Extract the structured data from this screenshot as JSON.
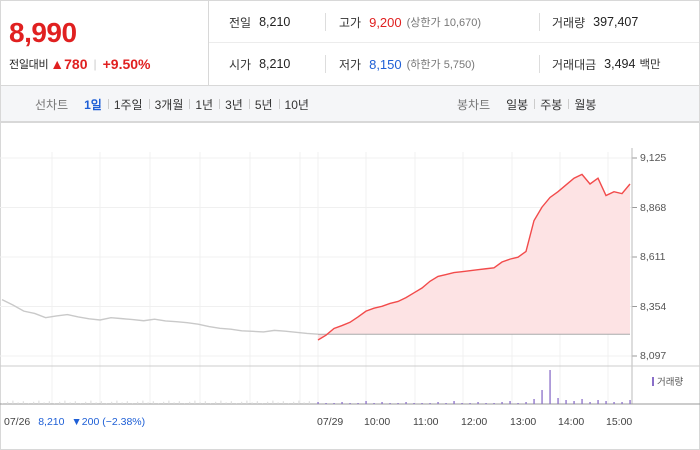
{
  "summary": {
    "price": "8,990",
    "diff_label": "전일대비",
    "diff_arrow": "▲",
    "diff_value": "780",
    "diff_pct": "+9.50%",
    "prev_close": {
      "label": "전일",
      "value": "8,210"
    },
    "high": {
      "label": "고가",
      "value": "9,200",
      "note": "(상한가 10,670)"
    },
    "volume": {
      "label": "거래량",
      "value": "397,407"
    },
    "open": {
      "label": "시가",
      "value": "8,210"
    },
    "low": {
      "label": "저가",
      "value": "8,150",
      "note": "(하한가 5,750)"
    },
    "amount": {
      "label": "거래대금",
      "value": "3,494",
      "unit": "백만"
    }
  },
  "tabs": {
    "line_title": "선차트",
    "line_items": [
      "1일",
      "1주일",
      "3개월",
      "1년",
      "3년",
      "5년",
      "10년"
    ],
    "line_active": "1일",
    "candle_title": "봉차트",
    "candle_items": [
      "일봉",
      "주봉",
      "월봉"
    ]
  },
  "chart_data": {
    "type": "line",
    "ylim": [
      8097,
      9125
    ],
    "yticks": [
      "9,125",
      "8,868",
      "8,611",
      "8,354",
      "8,097"
    ],
    "xticks": [
      "07/29",
      "10:00",
      "11:00",
      "12:00",
      "13:00",
      "14:00",
      "15:00"
    ],
    "prev_day": {
      "date": "07/26",
      "close": "8,210",
      "change": "▼200 (−2.38%)"
    },
    "prev_day_series": [
      8390,
      8362,
      8330,
      8318,
      8296,
      8305,
      8312,
      8300,
      8290,
      8284,
      8296,
      8291,
      8286,
      8280,
      8288,
      8279,
      8275,
      8270,
      8262,
      8250,
      8241,
      8236,
      8228,
      8225,
      8222,
      8230,
      8226,
      8220,
      8214,
      8210
    ],
    "today_series": {
      "x": [
        "09:00",
        "09:10",
        "09:20",
        "09:30",
        "09:40",
        "09:50",
        "10:00",
        "10:10",
        "10:20",
        "10:30",
        "10:40",
        "10:50",
        "11:00",
        "11:10",
        "11:20",
        "11:30",
        "11:40",
        "11:50",
        "12:00",
        "12:10",
        "12:20",
        "12:30",
        "12:40",
        "12:50",
        "13:00",
        "13:10",
        "13:20",
        "13:30",
        "13:40",
        "13:50",
        "14:00",
        "14:10",
        "14:20",
        "14:30",
        "14:40",
        "14:50",
        "15:00",
        "15:10",
        "15:20",
        "15:30"
      ],
      "y": [
        8180,
        8205,
        8240,
        8255,
        8272,
        8300,
        8330,
        8345,
        8355,
        8370,
        8380,
        8400,
        8425,
        8450,
        8485,
        8510,
        8520,
        8530,
        8535,
        8540,
        8545,
        8550,
        8555,
        8585,
        8600,
        8610,
        8640,
        8800,
        8870,
        8920,
        8950,
        8985,
        9020,
        9040,
        8990,
        9020,
        8930,
        8950,
        8940,
        8990
      ]
    },
    "volume_label": "거래량"
  }
}
